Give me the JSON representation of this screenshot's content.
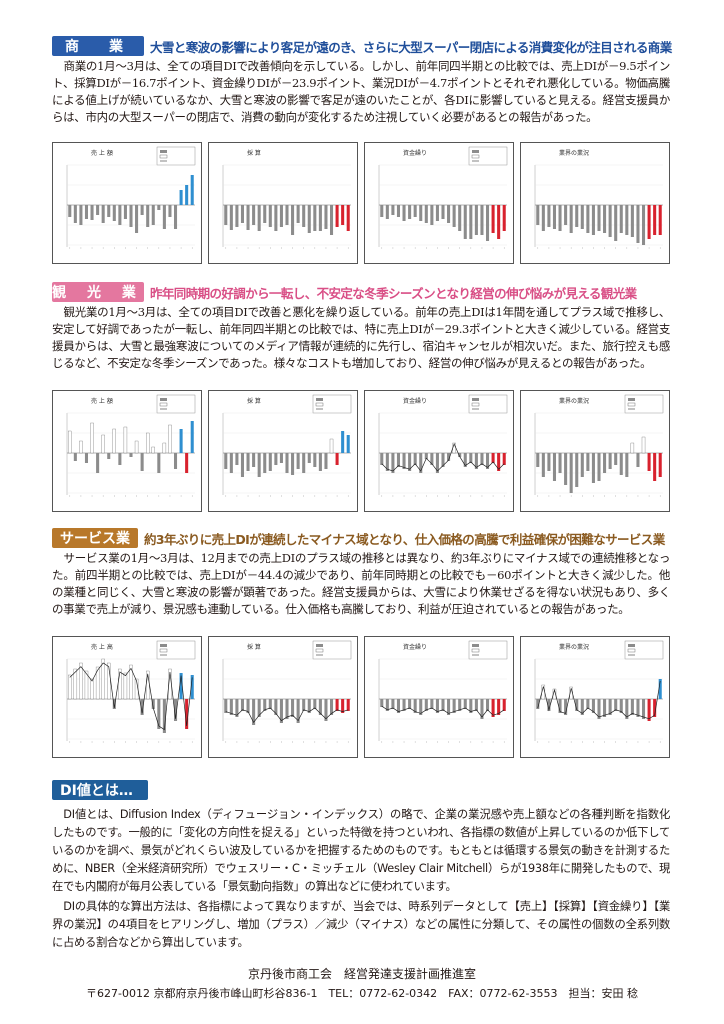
{
  "commerce": {
    "tag": "商　業",
    "headline": "大雪と寒波の影響により客足が遠のき、さらに大型スーパー閉店による消費変化が注目される商業",
    "body": "商業の1月～3月は、全ての項目DIで改善傾向を示している。しかし、前年同四半期との比較では、売上DIが－9.5ポイント、採算DIが－16.7ポイント、資金繰りDIが－23.9ポイント、業況DIが－4.7ポイントとそれぞれ悪化している。物価高騰による値上げが続いているなか、大雪と寒波の影響で客足が遠のいたことが、各DIに影響していると見える。経営支援員からは、市内の大型スーパーの閉店で、消費の動向が変化するため注視していく必要があるとの報告があった。",
    "charts": [
      {
        "title": "売 上 額",
        "legend": true,
        "line": false,
        "values": [
          -12,
          -18,
          -20,
          -14,
          -15,
          -10,
          -18,
          -12,
          -16,
          -20,
          -14,
          -22,
          -28,
          -10,
          -22,
          -20,
          -5,
          -24,
          -12,
          -24,
          15,
          20,
          30
        ]
      },
      {
        "title": "採 算",
        "legend": false,
        "line": false,
        "values": [
          -20,
          -25,
          -22,
          -18,
          -25,
          -20,
          -26,
          -18,
          -22,
          -26,
          -22,
          -20,
          -30,
          -18,
          -22,
          -28,
          -26,
          -26,
          -24,
          -30,
          -22,
          -20,
          -26
        ]
      },
      {
        "title": "資金繰り",
        "legend": true,
        "line": false,
        "values": [
          -12,
          -14,
          -10,
          -12,
          -16,
          -14,
          -12,
          -16,
          -18,
          -20,
          -16,
          -14,
          -18,
          -22,
          -26,
          -34,
          -34,
          -30,
          -30,
          -36,
          -28,
          -34,
          -26
        ]
      },
      {
        "title": "業界の業況",
        "legend": false,
        "line": false,
        "values": [
          -20,
          -26,
          -22,
          -24,
          -26,
          -20,
          -28,
          -22,
          -24,
          -28,
          -30,
          -26,
          -28,
          -32,
          -36,
          -28,
          -30,
          -32,
          -38,
          -40,
          -34,
          -30,
          -30
        ]
      }
    ]
  },
  "tourism": {
    "tag": "観 光 業",
    "headline": "昨年同時期の好調から一転し、不安定な冬季シーズンとなり経営の伸び悩みが見える観光業",
    "body": "観光業の1月～3月は、全ての項目DIで改善と悪化を繰り返している。前年の売上DIは1年間を通してプラス域で推移し、安定して好調であったが一転し、前年同四半期との比較では、特に売上DIが－29.3ポイントと大きく減少している。経営支援員からは、大雪と最強寒波についてのメディア情報が連続的に先行し、宿泊キャンセルが相次いだ。また、旅行控えも感じるなど、不安定な冬季シーズンであった。様々なコストも増加しており、経営の伸び悩みが見えるとの報告があった。",
    "charts": [
      {
        "title": "売 上 額",
        "legend": true,
        "line": false,
        "values": [
          22,
          -8,
          12,
          -10,
          30,
          -20,
          18,
          -6,
          24,
          -12,
          26,
          -4,
          12,
          -18,
          20,
          6,
          -20,
          10,
          28,
          -16,
          24,
          -20,
          32
        ]
      },
      {
        "title": "採 算",
        "legend": true,
        "line": false,
        "values": [
          -16,
          -20,
          -12,
          -24,
          -18,
          -14,
          -24,
          -20,
          -18,
          -12,
          -10,
          -20,
          -22,
          -16,
          -20,
          -10,
          -14,
          -18,
          -16,
          14,
          -12,
          22,
          18
        ]
      },
      {
        "title": "資金繰り",
        "legend": true,
        "line": true,
        "values": [
          -12,
          -18,
          -20,
          -14,
          -16,
          -18,
          -12,
          -20,
          -6,
          -12,
          -20,
          -14,
          -8,
          10,
          -4,
          -14,
          -10,
          -16,
          -12,
          -16,
          -10,
          -18,
          -12
        ]
      },
      {
        "title": "業界の業況",
        "legend": true,
        "line": false,
        "values": [
          -14,
          -24,
          -18,
          -28,
          -20,
          -32,
          -40,
          -34,
          -24,
          -18,
          -30,
          -28,
          -20,
          -16,
          -12,
          -22,
          -24,
          10,
          -14,
          16,
          -18,
          -28,
          -24
        ]
      }
    ]
  },
  "service": {
    "tag": "サービス業",
    "headline": "約3年ぶりに売上DIが連続したマイナス域となり、仕入価格の高騰で利益確保が困難なサービス業",
    "body": "サービス業の1月～3月は、12月までの売上DIのプラス域の推移とは異なり、約3年ぶりにマイナス域での連続推移となった。前四半期との比較では、売上DIが－44.4の減少であり、前年同時期との比較でも－60ポイントと大きく減少した。他の業種と同じく、大雪と寒波の影響が顕著であった。経営支援員からは、大雪により休業せざるを得ない状況もあり、多くの事業で売上が減り、景況感も連動している。仕入価格も高騰しており、利益が圧迫されているとの報告があった。",
    "charts": [
      {
        "title": "売 上 高",
        "legend": true,
        "line": true,
        "values": [
          24,
          30,
          36,
          28,
          20,
          32,
          40,
          36,
          -10,
          30,
          26,
          34,
          20,
          -16,
          28,
          -10,
          -30,
          -34,
          30,
          -22,
          26,
          -30,
          24
        ]
      },
      {
        "title": "採 算",
        "legend": true,
        "line": true,
        "values": [
          -14,
          -16,
          -18,
          -12,
          -14,
          -26,
          -18,
          -12,
          -10,
          -16,
          -24,
          -20,
          -18,
          -24,
          -12,
          -14,
          -10,
          -16,
          -22,
          -16,
          -12,
          -14,
          -12
        ]
      },
      {
        "title": "資金繰り",
        "legend": true,
        "line": true,
        "values": [
          -8,
          -12,
          -10,
          -14,
          -12,
          -10,
          -14,
          -16,
          -12,
          -10,
          -14,
          -12,
          -16,
          -14,
          -12,
          -10,
          -14,
          -12,
          -20,
          -12,
          -18,
          -16,
          -12
        ]
      },
      {
        "title": "業界の業況",
        "legend": true,
        "line": true,
        "values": [
          -10,
          14,
          -12,
          10,
          -14,
          -16,
          12,
          -12,
          -16,
          -10,
          -14,
          -20,
          -18,
          -16,
          -12,
          -14,
          -20,
          -16,
          -18,
          -20,
          -22,
          -18,
          20
        ]
      }
    ]
  },
  "di": {
    "tag": "DI値とは…",
    "p1": "DI値とは、Diffusion Index（ディフュージョン・インデックス）の略で、企業の業況感や売上額などの各種判断を指数化したものです。一般的に「変化の方向性を捉える」といった特徴を持つといわれ、各指標の数値が上昇しているのか低下しているのかを調べ、景気がどれくらい波及しているかを把握するためのものです。もともとは循環する景気の動きを計測するために、NBER（全米経済研究所）でウェスリー・C・ミッチェル（Wesley Clair Mitchell）らが1938年に開発したもので、現在でも内閣府が毎月公表している「景気動向指数」の算出などに使われています。",
    "p2": "DIの具体的な算出方法は、各指標によって異なりますが、当会では、時系列データとして【売上】【採算】【資金繰り】【業界の業況】の4項目をヒアリングし、増加（プラス）／減少（マイナス）などの属性に分類して、その属性の個数の全系列数に占める割合などから算出しています。"
  },
  "footer": {
    "org": "京丹後市商工会　経営発達支援計画推進室",
    "address": "〒627-0012 京都府京丹後市峰山町杉谷836-1　TEL：0772-62-0342　FAX：0772-62-3553　担当：安田 稔"
  },
  "colors": {
    "commerce_tag": "#2a5caa",
    "commerce_headline": "#1f4e9a",
    "tourism_tag": "#e4779f",
    "tourism_headline": "#d94f86",
    "service_tag": "#b8782a",
    "service_headline": "#8a5a20",
    "bar_gray": "#8c8c8c",
    "bar_red": "#d8222e",
    "bar_blue": "#2f8fd0"
  }
}
